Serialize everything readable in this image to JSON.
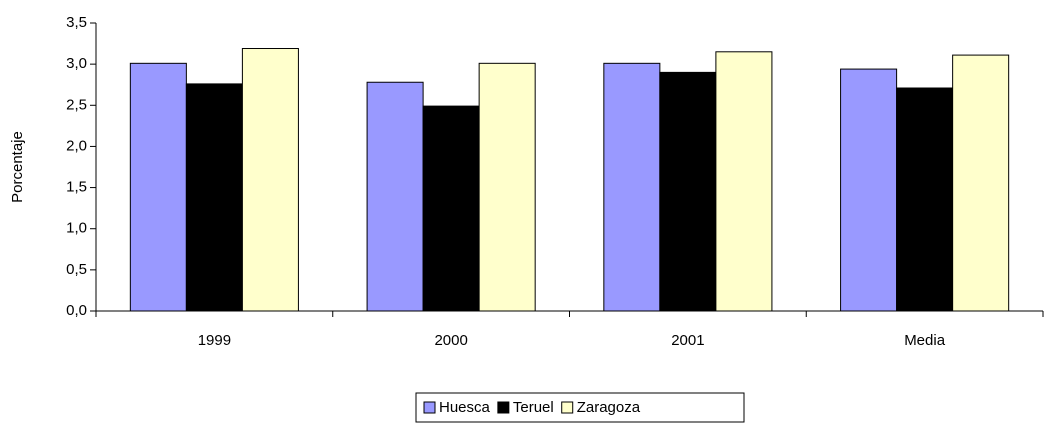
{
  "chart_data": {
    "type": "bar",
    "y_label": "Porcentaje",
    "categories": [
      "1999",
      "2000",
      "2001",
      "Media"
    ],
    "series": [
      {
        "name": "Huesca",
        "color": "#9999ff",
        "values": [
          3.01,
          2.78,
          3.01,
          2.94
        ]
      },
      {
        "name": "Teruel",
        "color": "#000000",
        "values": [
          2.76,
          2.49,
          2.9,
          2.71
        ]
      },
      {
        "name": "Zaragoza",
        "color": "#ffffcc",
        "values": [
          3.19,
          3.01,
          3.15,
          3.11
        ]
      }
    ],
    "ylim": [
      0,
      3.5
    ],
    "yticks": [
      {
        "value": 0,
        "label": "0,0"
      },
      {
        "value": 0.5,
        "label": "0,5"
      },
      {
        "value": 1,
        "label": "1,0"
      },
      {
        "value": 1.5,
        "label": "1,5"
      },
      {
        "value": 2,
        "label": "2,0"
      },
      {
        "value": 2.5,
        "label": "2,5"
      },
      {
        "value": 3,
        "label": "3,0"
      },
      {
        "value": 3.5,
        "label": "3,5"
      }
    ],
    "grid": false,
    "legend": "bottom"
  }
}
